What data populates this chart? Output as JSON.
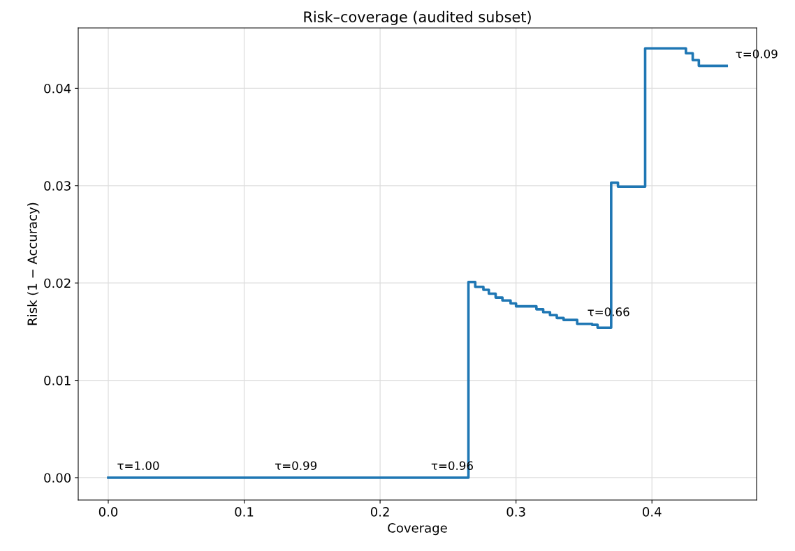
{
  "chart_data": {
    "type": "step",
    "title": "Risk–coverage (audited subset)",
    "xlabel": "Coverage",
    "ylabel": "Risk (1 − Accuracy)",
    "x": [
      0,
      0.265,
      0.27,
      0.276,
      0.28,
      0.285,
      0.29,
      0.296,
      0.3,
      0.315,
      0.32,
      0.325,
      0.33,
      0.335,
      0.345,
      0.356,
      0.36,
      0.37,
      0.375,
      0.395,
      0.425,
      0.43,
      0.4345,
      0.455
    ],
    "series": [
      {
        "color": "#1f77b4",
        "values": [
          0,
          0.0201,
          0.0196,
          0.0193,
          0.0189,
          0.0185,
          0.0182,
          0.0179,
          0.0176,
          0.0173,
          0.017,
          0.0167,
          0.0164,
          0.0162,
          0.0158,
          0.0157,
          0.0154,
          0.0303,
          0.0299,
          0.0441,
          0.0436,
          0.0429,
          0.0423,
          0.0423
        ]
      }
    ],
    "annotations": [
      {
        "text": "τ=1.00",
        "x": 0,
        "y": 0
      },
      {
        "text": "τ=0.99",
        "x": 0.116,
        "y": 0
      },
      {
        "text": "τ=0.96",
        "x": 0.231,
        "y": 0
      },
      {
        "text": "τ=0.66",
        "x": 0.346,
        "y": 0.0158
      },
      {
        "text": "τ=0.09",
        "x": 0.455,
        "y": 0.0423
      }
    ],
    "xlim": [
      -0.0221,
      0.477
    ],
    "ylim": [
      -0.0023,
      0.0462
    ],
    "xticks": [
      {
        "value": 0,
        "label": "0.0"
      },
      0.1,
      0.2,
      0.3,
      0.4
    ],
    "yticks": [
      {
        "value": 0,
        "label": "0.00"
      },
      0.01,
      0.02,
      0.03,
      0.04
    ],
    "grid": true
  }
}
